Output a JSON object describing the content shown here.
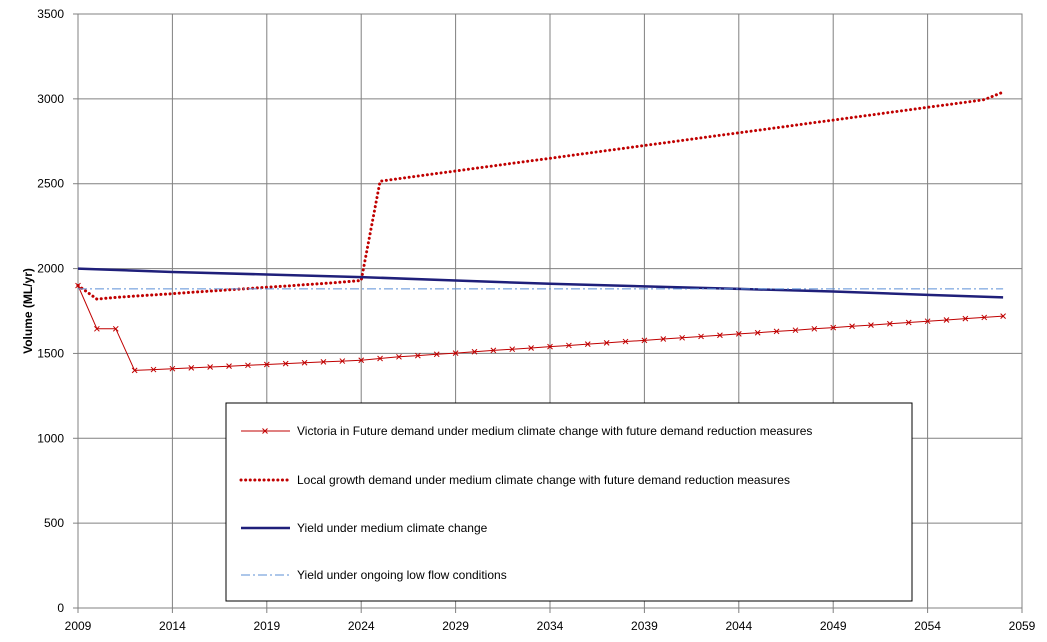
{
  "chart_data": {
    "type": "line",
    "title": "",
    "xlabel": "",
    "ylabel": "Volume (ML/yr)",
    "xlim": [
      2009,
      2059
    ],
    "ylim": [
      0,
      3500
    ],
    "xticks": [
      2009,
      2014,
      2019,
      2024,
      2029,
      2034,
      2039,
      2044,
      2049,
      2054,
      2059
    ],
    "yticks": [
      0,
      500,
      1000,
      1500,
      2000,
      2500,
      3000,
      3500
    ],
    "grid": true,
    "legend_position": "inside-lower-center",
    "series": [
      {
        "name": "Victoria in Future demand under medium climate change with future demand reduction measures",
        "color": "#c00000",
        "style": "solid-x",
        "x": [
          2009,
          2010,
          2011,
          2012,
          2013,
          2014,
          2015,
          2016,
          2017,
          2018,
          2019,
          2020,
          2021,
          2022,
          2023,
          2024,
          2025,
          2026,
          2027,
          2028,
          2029,
          2030,
          2031,
          2032,
          2033,
          2034,
          2035,
          2036,
          2037,
          2038,
          2039,
          2040,
          2041,
          2042,
          2043,
          2044,
          2045,
          2046,
          2047,
          2048,
          2049,
          2050,
          2051,
          2052,
          2053,
          2054,
          2055,
          2056,
          2057,
          2058
        ],
        "values": [
          1900,
          1645,
          1645,
          1400,
          1405,
          1410,
          1415,
          1420,
          1425,
          1430,
          1435,
          1440,
          1445,
          1450,
          1455,
          1460,
          1470,
          1480,
          1487,
          1495,
          1502,
          1510,
          1518,
          1525,
          1532,
          1540,
          1547,
          1555,
          1562,
          1570,
          1577,
          1585,
          1592,
          1600,
          1607,
          1615,
          1622,
          1630,
          1637,
          1645,
          1652,
          1660,
          1667,
          1675,
          1682,
          1690,
          1697,
          1705,
          1712,
          1720
        ]
      },
      {
        "name": "Local growth demand under medium climate change with future demand reduction measures",
        "color": "#c00000",
        "style": "dotted",
        "x": [
          2009,
          2010,
          2011,
          2012,
          2013,
          2014,
          2015,
          2016,
          2017,
          2018,
          2019,
          2020,
          2021,
          2022,
          2023,
          2024,
          2025,
          2026,
          2027,
          2028,
          2029,
          2030,
          2031,
          2032,
          2033,
          2034,
          2035,
          2036,
          2037,
          2038,
          2039,
          2040,
          2041,
          2042,
          2043,
          2044,
          2045,
          2046,
          2047,
          2048,
          2049,
          2050,
          2051,
          2052,
          2053,
          2054,
          2055,
          2056,
          2057,
          2058
        ],
        "values": [
          1900,
          1820,
          1830,
          1838,
          1845,
          1852,
          1860,
          1867,
          1875,
          1882,
          1890,
          1897,
          1905,
          1912,
          1920,
          1930,
          2515,
          2530,
          2545,
          2560,
          2575,
          2590,
          2605,
          2620,
          2635,
          2650,
          2665,
          2680,
          2695,
          2710,
          2725,
          2740,
          2755,
          2770,
          2785,
          2800,
          2815,
          2830,
          2845,
          2860,
          2875,
          2890,
          2905,
          2920,
          2935,
          2950,
          2965,
          2980,
          2995,
          3040
        ]
      },
      {
        "name": "Yield under medium climate change",
        "color": "#1f1f7a",
        "style": "solid-thick",
        "x": [
          2009,
          2014,
          2019,
          2024,
          2029,
          2034,
          2039,
          2044,
          2049,
          2054,
          2058
        ],
        "values": [
          2000,
          1980,
          1965,
          1950,
          1930,
          1910,
          1895,
          1880,
          1865,
          1845,
          1830
        ]
      },
      {
        "name": "Yield under ongoing low flow conditions",
        "color": "#5b8fd6",
        "style": "dashdot",
        "x": [
          2009,
          2058
        ],
        "values": [
          1880,
          1880
        ]
      }
    ]
  }
}
